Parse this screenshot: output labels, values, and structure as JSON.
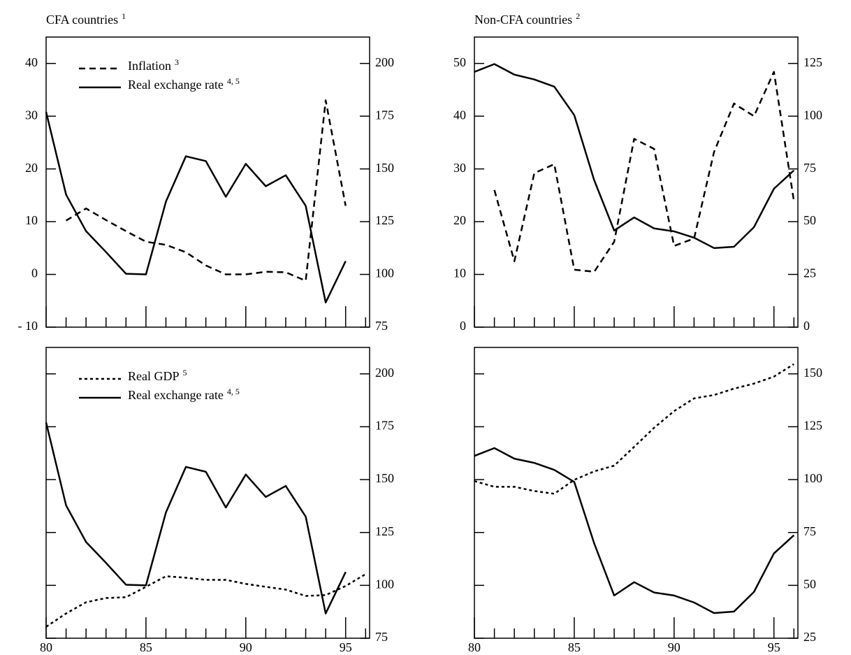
{
  "chart_data": [
    {
      "type": "line",
      "title": "CFA countries",
      "title_footnote": "1",
      "x": [
        80,
        81,
        82,
        83,
        84,
        85,
        86,
        87,
        88,
        89,
        90,
        91,
        92,
        93,
        94,
        95,
        96
      ],
      "xlim": [
        80,
        96.2
      ],
      "xticks": [
        80,
        85,
        90,
        95
      ],
      "xminorticks": [
        81,
        82,
        83,
        84,
        86,
        87,
        88,
        89,
        91,
        92,
        93,
        94,
        96
      ],
      "xtick_labels": false,
      "ylim": [
        -10,
        45
      ],
      "yticks": [
        {
          "value": -10,
          "label": "- 10"
        },
        0,
        10,
        20,
        30,
        40
      ],
      "y2lim": [
        75,
        212.5
      ],
      "y2ticks": [
        75,
        100,
        125,
        150,
        175,
        200
      ],
      "series": [
        {
          "name": "Inflation",
          "footnote": "3",
          "color": "#000000",
          "style": "dashed",
          "values": [
            null,
            10.2,
            12.5,
            10.3,
            8.2,
            6.2,
            5.6,
            4.2,
            1.7,
            0,
            0,
            0.5,
            0.4,
            -1.2,
            33,
            13,
            null
          ]
        },
        {
          "name": "Real exchange rate",
          "footnote": "4, 5",
          "color": "#000000",
          "style": "solid",
          "axis": "y2",
          "values": [
            177,
            137.8,
            120.5,
            110.6,
            100.3,
            100,
            134.5,
            156,
            153.7,
            136.8,
            152.4,
            141.8,
            147,
            132.5,
            86.7,
            106.3,
            null
          ]
        }
      ]
    },
    {
      "type": "line",
      "title": "Non-CFA countries",
      "title_footnote": "2",
      "x": [
        80,
        81,
        82,
        83,
        84,
        85,
        86,
        87,
        88,
        89,
        90,
        91,
        92,
        93,
        94,
        95,
        96
      ],
      "xlim": [
        80,
        96.2
      ],
      "xticks": [
        80,
        85,
        90,
        95
      ],
      "xminorticks": [
        81,
        82,
        83,
        84,
        86,
        87,
        88,
        89,
        91,
        92,
        93,
        94,
        96
      ],
      "xtick_labels": false,
      "ylim": [
        0,
        55
      ],
      "yticks": [
        0,
        10,
        20,
        30,
        40,
        50
      ],
      "y2lim": [
        0,
        137.5
      ],
      "y2ticks": [
        0,
        25,
        50,
        75,
        100,
        125
      ],
      "series": [
        {
          "color": "#000000",
          "style": "dashed",
          "values": [
            null,
            26,
            12.5,
            29.2,
            30.9,
            10.9,
            10.5,
            16.2,
            35.7,
            33.8,
            15.4,
            16.8,
            33.2,
            42.4,
            40,
            48.4,
            23.9
          ]
        },
        {
          "color": "#000000",
          "style": "solid",
          "axis": "y2",
          "values": [
            121,
            124.7,
            119.7,
            117.4,
            114,
            100.5,
            69.6,
            45.8,
            52,
            46.8,
            45.4,
            42.4,
            37.5,
            38.1,
            47.4,
            65.6,
            74.3
          ]
        }
      ]
    },
    {
      "type": "line",
      "x": [
        80,
        81,
        82,
        83,
        84,
        85,
        86,
        87,
        88,
        89,
        90,
        91,
        92,
        93,
        94,
        95,
        96
      ],
      "xlim": [
        80,
        96.2
      ],
      "xticks": [
        80,
        85,
        90,
        95
      ],
      "xminorticks": [
        81,
        82,
        83,
        84,
        86,
        87,
        88,
        89,
        91,
        92,
        93,
        94,
        96
      ],
      "xtick_labels": true,
      "y2lim": [
        75,
        212.5
      ],
      "y2ticks": [
        75,
        100,
        125,
        150,
        175,
        200
      ],
      "series": [
        {
          "name": "Real GDP",
          "footnote": "5",
          "color": "#000000",
          "style": "dotted",
          "axis": "y2",
          "values": [
            80.4,
            86.7,
            92,
            94,
            94.4,
            99.3,
            104.3,
            103.6,
            102.6,
            102.6,
            100.7,
            99.3,
            98,
            95,
            95.4,
            99.7,
            105.3
          ]
        },
        {
          "name": "Real exchange rate",
          "footnote": "4, 5",
          "color": "#000000",
          "style": "solid",
          "axis": "y2",
          "values": [
            177,
            137.8,
            120.5,
            110.6,
            100.3,
            100,
            134.5,
            156,
            153.7,
            136.8,
            152.4,
            141.8,
            147,
            132.5,
            86.7,
            106.3,
            null
          ]
        }
      ]
    },
    {
      "type": "line",
      "x": [
        80,
        81,
        82,
        83,
        84,
        85,
        86,
        87,
        88,
        89,
        90,
        91,
        92,
        93,
        94,
        95,
        96
      ],
      "xlim": [
        80,
        96.2
      ],
      "xticks": [
        80,
        85,
        90,
        95
      ],
      "xminorticks": [
        81,
        82,
        83,
        84,
        86,
        87,
        88,
        89,
        91,
        92,
        93,
        94,
        96
      ],
      "xtick_labels": true,
      "y2lim": [
        25,
        162.5
      ],
      "y2ticks": [
        25,
        50,
        75,
        100,
        125,
        150
      ],
      "series": [
        {
          "color": "#000000",
          "style": "dotted",
          "axis": "y2",
          "values": [
            99.3,
            96.6,
            96.6,
            94.6,
            93.3,
            99.9,
            103.9,
            106.6,
            115.5,
            124.5,
            132.4,
            138.4,
            140,
            143,
            145.4,
            148.7,
            154.6
          ]
        },
        {
          "color": "#000000",
          "style": "solid",
          "axis": "y2",
          "values": [
            111.2,
            114.9,
            109.9,
            107.9,
            104.6,
            98.9,
            69.8,
            45.2,
            51.5,
            46.6,
            45.2,
            41.9,
            36.9,
            37.6,
            46.9,
            65.1,
            73.7
          ]
        }
      ]
    }
  ]
}
